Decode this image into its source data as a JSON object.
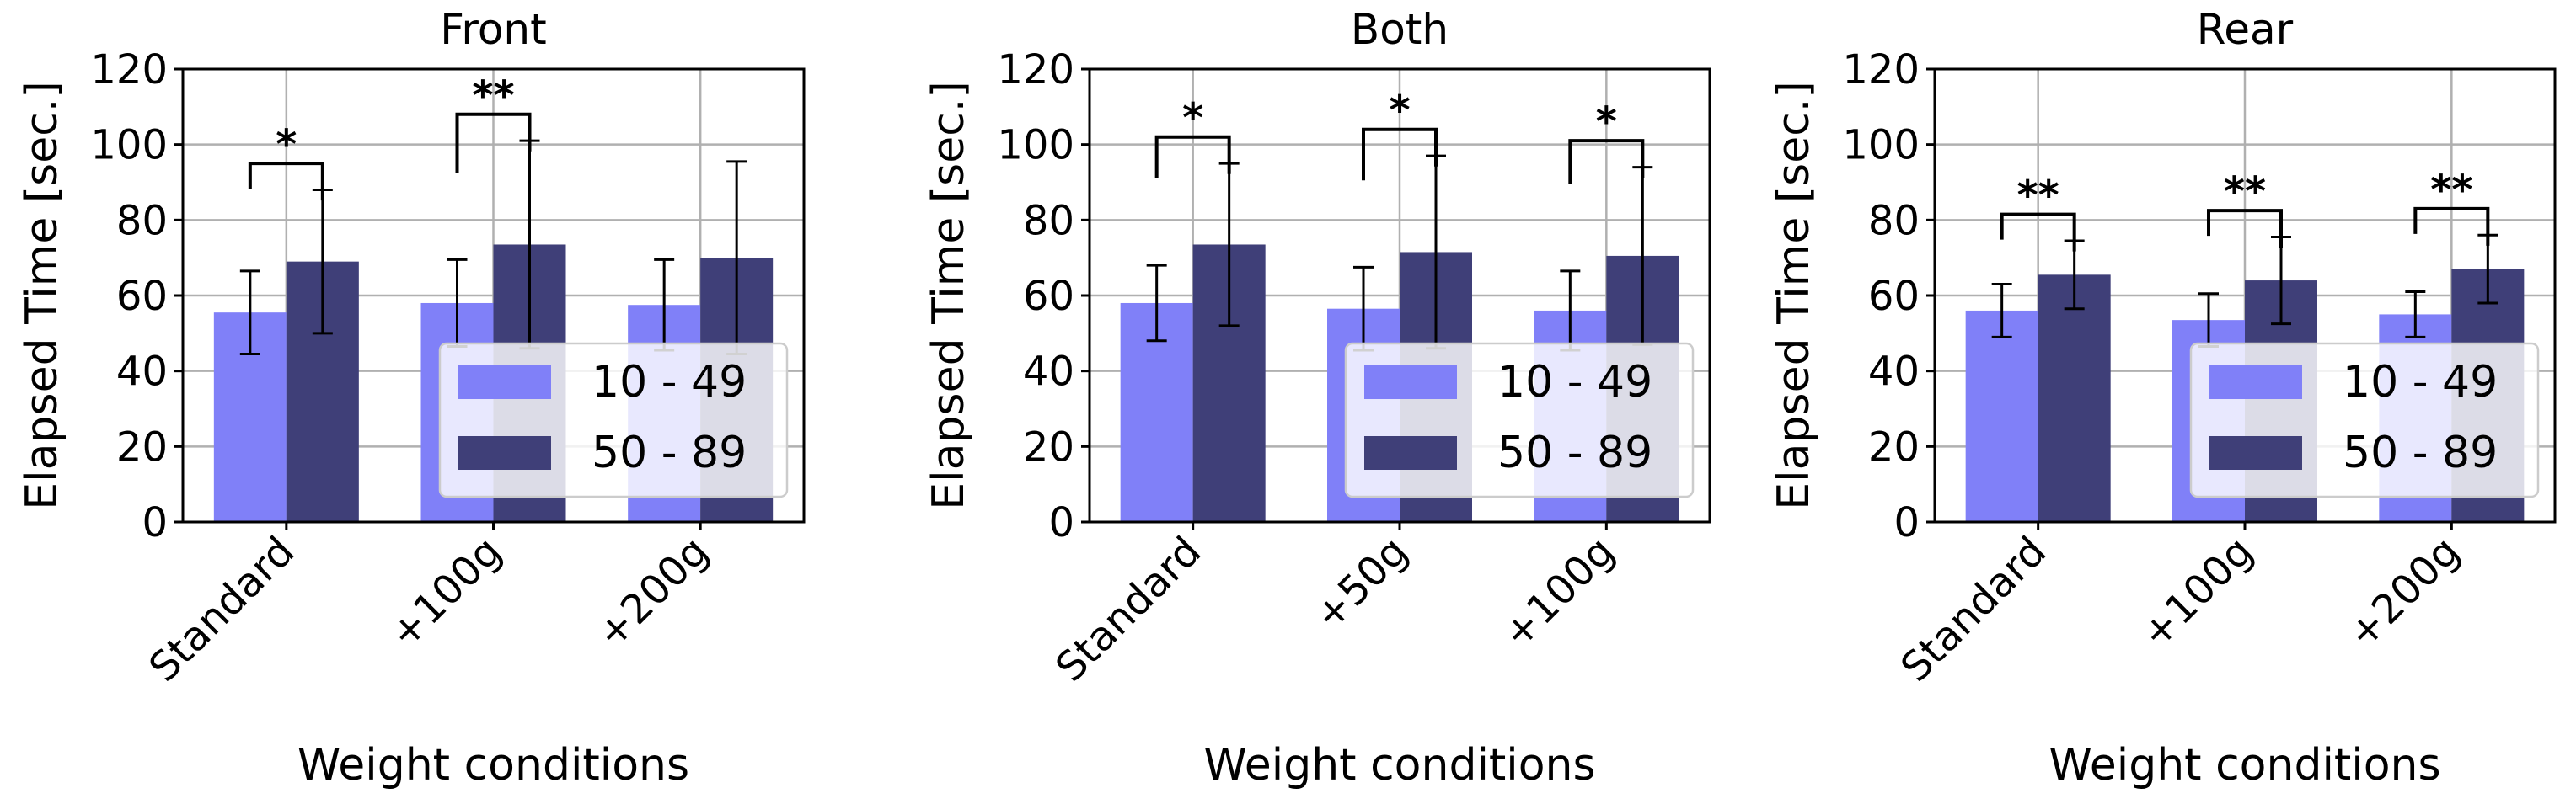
{
  "chart_data": [
    {
      "type": "bar",
      "title": "Front",
      "xlabel": "Weight conditions",
      "ylabel": "Elapsed Time [sec.]",
      "ylim": [
        0,
        120
      ],
      "yticks": [
        0,
        20,
        40,
        60,
        80,
        100,
        120
      ],
      "grid": true,
      "legend_position": "lower-right",
      "categories": [
        "Standard",
        "+100g",
        "+200g"
      ],
      "series": [
        {
          "name": "10 - 49",
          "color": "#8080f8",
          "values": [
            55.5,
            58,
            57.5
          ],
          "errors": [
            11,
            11.5,
            12
          ]
        },
        {
          "name": "50 - 89",
          "color": "#3f3f78",
          "values": [
            69,
            73.5,
            70
          ],
          "errors": [
            19,
            27.5,
            25.5
          ]
        }
      ],
      "annotations": [
        {
          "label": "*",
          "category_index": 0
        },
        {
          "label": "**",
          "category_index": 1
        }
      ]
    },
    {
      "type": "bar",
      "title": "Both",
      "xlabel": "Weight conditions",
      "ylabel": "Elapsed Time [sec.]",
      "ylim": [
        0,
        120
      ],
      "yticks": [
        0,
        20,
        40,
        60,
        80,
        100,
        120
      ],
      "grid": true,
      "legend_position": "lower-right",
      "categories": [
        "Standard",
        "+50g",
        "+100g"
      ],
      "series": [
        {
          "name": "10 - 49",
          "color": "#8080f8",
          "values": [
            58,
            56.5,
            56
          ],
          "errors": [
            10,
            11,
            10.5
          ]
        },
        {
          "name": "50 - 89",
          "color": "#3f3f78",
          "values": [
            73.5,
            71.5,
            70.5
          ],
          "errors": [
            21.5,
            25.5,
            23.5
          ]
        }
      ],
      "annotations": [
        {
          "label": "*",
          "category_index": 0
        },
        {
          "label": "*",
          "category_index": 1
        },
        {
          "label": "*",
          "category_index": 2
        }
      ]
    },
    {
      "type": "bar",
      "title": "Rear",
      "xlabel": "Weight conditions",
      "ylabel": "Elapsed Time [sec.]",
      "ylim": [
        0,
        120
      ],
      "yticks": [
        0,
        20,
        40,
        60,
        80,
        100,
        120
      ],
      "grid": true,
      "legend_position": "lower-right",
      "categories": [
        "Standard",
        "+100g",
        "+200g"
      ],
      "series": [
        {
          "name": "10 - 49",
          "color": "#8080f8",
          "values": [
            56,
            53.5,
            55
          ],
          "errors": [
            7,
            7,
            6
          ]
        },
        {
          "name": "50 - 89",
          "color": "#3f3f78",
          "values": [
            65.5,
            64,
            67
          ],
          "errors": [
            9,
            11.5,
            9
          ]
        }
      ],
      "annotations": [
        {
          "label": "**",
          "category_index": 0
        },
        {
          "label": "**",
          "category_index": 1
        },
        {
          "label": "**",
          "category_index": 2
        }
      ]
    }
  ]
}
